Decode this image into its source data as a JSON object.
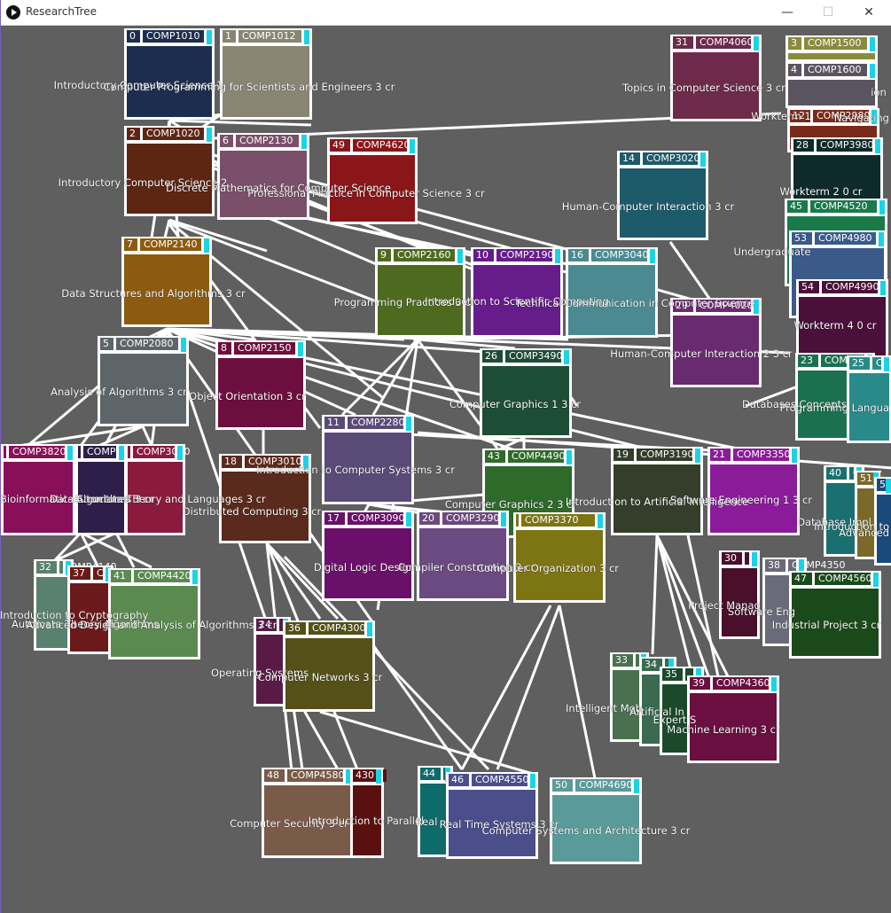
{
  "window": {
    "title": "ResearchTree",
    "controls": {
      "minimize": "—",
      "maximize": "☐",
      "close": "✕"
    }
  },
  "nodes": [
    {
      "id": "0",
      "idx": "0",
      "code": "COMP1010",
      "label": "Introductory Computer Science 1",
      "color": "#1c2e4f"
    },
    {
      "id": "1",
      "idx": "1",
      "code": "COMP1012",
      "label": "Computer Programming for Scientists and Engineers  3 cr",
      "color": "#888672"
    },
    {
      "id": "2",
      "idx": "2",
      "code": "COMP1020",
      "label": "Introductory Computer Science 2",
      "color": "#5c2613"
    },
    {
      "id": "6",
      "idx": "6",
      "code": "COMP2130",
      "label": "Discrete Mathematics for Computer Science",
      "color": "#7a4f6a"
    },
    {
      "id": "49",
      "idx": "49",
      "code": "COMP4620",
      "label": "Professional Practice in Computer Science  3 cr",
      "color": "#8a1619"
    },
    {
      "id": "7",
      "idx": "7",
      "code": "COMP2140",
      "label": "Data Structures and Algorithms  3 cr",
      "color": "#8c5b10"
    },
    {
      "id": "5",
      "idx": "5",
      "code": "COMP2080",
      "label": "Analysis of Algorithms  3 cr",
      "color": "#5d6569"
    },
    {
      "id": "8",
      "idx": "8",
      "code": "COMP2150",
      "label": "Object Orientation  3 cr",
      "color": "#6d0f3e"
    },
    {
      "id": "9",
      "idx": "9",
      "code": "COMP2160",
      "label": "Programming Practices  3 cr",
      "color": "#4e6a1f"
    },
    {
      "id": "10",
      "idx": "10",
      "code": "COMP2190",
      "label": "Introduction to Scientific Computing",
      "color": "#661c8a"
    },
    {
      "id": "16",
      "idx": "16",
      "code": "COMP3040",
      "label": "Technical Communication in Computer Science",
      "color": "#4a8a90"
    },
    {
      "id": "14",
      "idx": "14",
      "code": "COMP3020",
      "label": "Human-Computer Interaction  3 cr",
      "color": "#1d5a6a"
    },
    {
      "id": "31",
      "idx": "31",
      "code": "COMP4060",
      "label": "Topics in Computer Science  3 cr",
      "color": "#6d2a4a"
    },
    {
      "id": "29",
      "idx": "29",
      "code": "COMP4020",
      "label": "Human-Computer Interaction 2  3 cr",
      "color": "#6a2a70"
    },
    {
      "id": "26",
      "idx": "26",
      "code": "COMP3490",
      "label": "Computer Graphics 1  3 cr",
      "color": "#1e4d36"
    },
    {
      "id": "11",
      "idx": "11",
      "code": "COMP2280",
      "label": "Introduction to Computer Systems  3 cr",
      "color": "#5a4a78"
    },
    {
      "id": "18",
      "idx": "18",
      "code": "COMP3010",
      "label": "Distributed Computing  3 cr",
      "color": "#5a2a1c"
    },
    {
      "id": "43",
      "idx": "43",
      "code": "COMP4490",
      "label": "Computer Graphics 2  3 cr",
      "color": "#2e6a2a"
    },
    {
      "id": "19",
      "idx": "19",
      "code": "COMP3190",
      "label": "Introduction to Artificial Intelligence",
      "color": "#343e2a"
    },
    {
      "id": "21",
      "idx": "21",
      "code": "COMP3350",
      "label": "Software Engineering 1  3 cr",
      "color": "#8a1c9a"
    },
    {
      "id": "12x",
      "idx": "",
      "code": "COMP3820",
      "label": "Bioinformatics Algorithms  3 cr",
      "color": "#8a0f5a"
    },
    {
      "id": "15",
      "idx": "",
      "code": "COMP3170",
      "label": "Data Structures  3 cr",
      "color": "#2e1e4a"
    },
    {
      "id": "13",
      "idx": "",
      "code": "COMP3030",
      "label": "Automata Theory and Languages  3 cr",
      "color": "#8a1a3e"
    },
    {
      "id": "17",
      "idx": "17",
      "code": "COMP3090",
      "label": "Digital Logic Design",
      "color": "#6a0f6a"
    },
    {
      "id": "20",
      "idx": "20",
      "code": "COMP3290",
      "label": "Compiler Construction  3 cr",
      "color": "#6a4a80"
    },
    {
      "id": "37x",
      "idx": "",
      "code": "COMP3370",
      "label": "Computer Organization  3 cr",
      "color": "#7d7414"
    },
    {
      "id": "32",
      "idx": "32",
      "code": "COMP4140",
      "label": "Introduction to Cryptography",
      "color": "#5a8070"
    },
    {
      "id": "37",
      "idx": "37",
      "code": "COMP4040",
      "label": "Automata Theory Algorithms",
      "color": "#6a1a1a"
    },
    {
      "id": "41",
      "idx": "41",
      "code": "COMP4420",
      "label": "Advanced Design and Analysis of Algorithms  3 cr",
      "color": "#5a8a50"
    },
    {
      "id": "24",
      "idx": "24",
      "code": "COMP3430",
      "label": "Operating Systems",
      "color": "#5a1a48"
    },
    {
      "id": "36",
      "idx": "36",
      "code": "COMP4300",
      "label": "Computer Networks  3 cr",
      "color": "#545018"
    },
    {
      "id": "48",
      "idx": "48",
      "code": "COMP4580",
      "label": "Computer Security  3 cr",
      "color": "#7a5a48"
    },
    {
      "id": "430",
      "idx": "430",
      "code": "",
      "label": "Introduction to Parallel",
      "color": "#5a1010"
    },
    {
      "id": "44",
      "idx": "44",
      "code": "",
      "label": "Real",
      "color": "#0f6a6a"
    },
    {
      "id": "46",
      "idx": "46",
      "code": "COMP4550",
      "label": "Real Time Systems  3 cr",
      "color": "#4a4e8a"
    },
    {
      "id": "50",
      "idx": "50",
      "code": "COMP4690",
      "label": "Computer Systems and Architecture  3 cr",
      "color": "#5a9a9a"
    },
    {
      "id": "33",
      "idx": "33",
      "code": "",
      "label": "Intelligent Mob",
      "color": "#4a7050"
    },
    {
      "id": "34",
      "idx": "34",
      "code": "",
      "label": "Artificial In",
      "color": "#3a6a50"
    },
    {
      "id": "35",
      "idx": "35",
      "code": "",
      "label": "Expert S",
      "color": "#1a4a2a"
    },
    {
      "id": "39",
      "idx": "39",
      "code": "COMP4360",
      "label": "Machine Learning  3 cr",
      "color": "#6a0f40"
    },
    {
      "id": "30",
      "idx": "30",
      "code": "",
      "label": "Project Manag",
      "color": "#4a0f2a"
    },
    {
      "id": "38",
      "idx": "38",
      "code": "COMP4350",
      "label": "Software Eng",
      "color": "#6a6a7a"
    },
    {
      "id": "47",
      "idx": "47",
      "code": "COMP4560",
      "label": "Industrial Project  3 cr",
      "color": "#1a4a1a"
    },
    {
      "id": "3",
      "idx": "3",
      "code": "COMP1500",
      "label": "Navigating",
      "color": "#8a8a40"
    },
    {
      "id": "4",
      "idx": "4",
      "code": "COMP1600",
      "label": "ion",
      "color": "#5a5460"
    },
    {
      "id": "12",
      "idx": "12",
      "code": "COMP2980",
      "label": "Workterm 1",
      "color": "#7a2a1a"
    },
    {
      "id": "28",
      "idx": "28",
      "code": "COMP3980",
      "label": "Workterm 2  0 cr",
      "color": "#0f2a2a"
    },
    {
      "id": "45",
      "idx": "45",
      "code": "COMP4520",
      "label": "Undergraduate",
      "color": "#1a7a4a"
    },
    {
      "id": "53",
      "idx": "53",
      "code": "COMP4980",
      "label": "",
      "color": "#3a5a8a"
    },
    {
      "id": "54",
      "idx": "54",
      "code": "COMP4990",
      "label": "Workterm 4  0 cr",
      "color": "#4a0f3a"
    },
    {
      "id": "23",
      "idx": "23",
      "code": "COMP3380",
      "label": "Databases Concepts",
      "color": "#1a7050"
    },
    {
      "id": "25",
      "idx": "25",
      "code": "COMP3",
      "label": "Programming Langua",
      "color": "#2a8a8a"
    },
    {
      "id": "40",
      "idx": "40",
      "code": "C",
      "label": "Database Impl",
      "color": "#1a7070"
    },
    {
      "id": "51",
      "idx": "51",
      "code": "",
      "label": "Introduction to",
      "color": "#7a6a2a"
    },
    {
      "id": "52",
      "idx": "52",
      "code": "",
      "label": "Advanced",
      "color": "#1a4a7a"
    }
  ],
  "floating_labels": [
    {
      "id": "f1",
      "text": "Introductory Computer Science 1"
    },
    {
      "id": "f2",
      "text": "Introductory Computer Science 2"
    }
  ]
}
